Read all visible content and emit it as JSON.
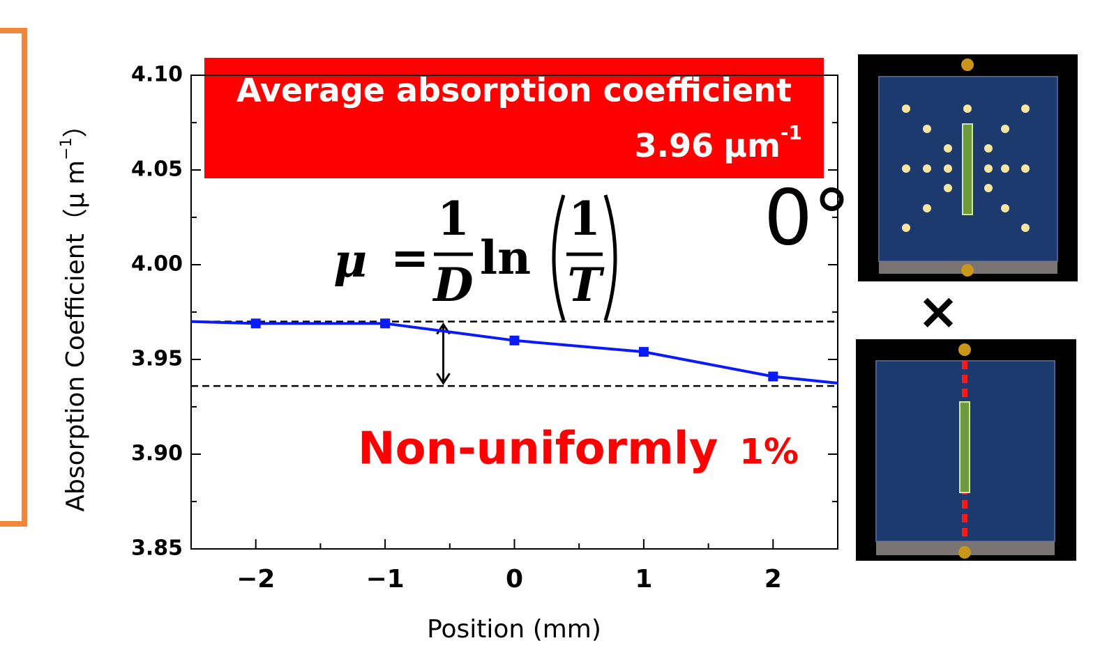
{
  "chart_data": {
    "type": "line",
    "xlabel": "Position (mm)",
    "ylabel": [
      "Absorption Coefficient（μ m",
      "−1",
      "）"
    ],
    "x": [
      -2.5,
      -2,
      -1,
      0,
      1,
      2,
      2.5
    ],
    "series": [
      {
        "color": "#0a1aff",
        "values": [
          3.97,
          3.969,
          3.969,
          3.96,
          3.954,
          3.941,
          3.9375
        ]
      }
    ],
    "marker_x": [
      -2,
      -1,
      0,
      1,
      2
    ],
    "xlim": [
      -2.5,
      2.5
    ],
    "ylim": [
      3.85,
      4.1
    ],
    "xticks": [
      {
        "value": -2,
        "label": "−2"
      },
      {
        "value": -1,
        "label": "−1"
      },
      0,
      1,
      2
    ],
    "xminorticks": [
      -1.5,
      -0.5,
      0.5,
      1.5
    ],
    "yticks": [
      {
        "value": 3.85,
        "label": "3.85"
      },
      {
        "value": 3.9,
        "label": "3.90"
      },
      {
        "value": 3.95,
        "label": "3.95"
      },
      {
        "value": 4.0,
        "label": "4.00"
      },
      {
        "value": 4.05,
        "label": "4.05"
      },
      {
        "value": 4.1,
        "label": "4.10"
      }
    ],
    "yminorticks": [
      3.875,
      3.925,
      3.975,
      4.025,
      4.075
    ],
    "reference_lines": [
      3.97,
      3.936
    ],
    "range_arrow_x": -0.55,
    "average_label": "Average absorption coefficient",
    "average_value": 3.96,
    "average_unit": "μm",
    "average_unit_exp": "-1",
    "nonuniform_label": "Non-uniformly",
    "nonuniform_value": "1%",
    "angle_label": "0°",
    "times_label": "×",
    "formula": {
      "lhs": "μ",
      "eq": "=",
      "num1": "1",
      "den1": "D",
      "fn": "ln",
      "num2": "1",
      "den2": "T"
    }
  }
}
